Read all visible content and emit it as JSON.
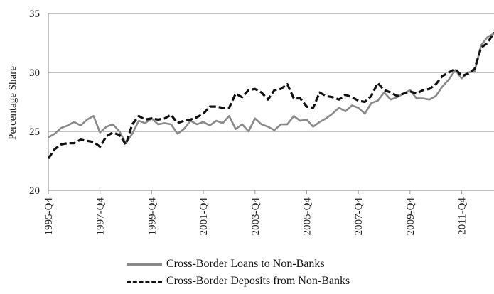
{
  "chart_data": {
    "type": "line",
    "ylabel": "Percentage Share",
    "xlabel": "",
    "ylim": [
      20,
      35
    ],
    "y_ticks": [
      "20",
      "25",
      "30",
      "35"
    ],
    "x_tick_labels": [
      "1995-Q4",
      "1997-Q4",
      "1999-Q4",
      "2001-Q4",
      "2003-Q4",
      "2005-Q4",
      "2007-Q4",
      "2009-Q4",
      "2011-Q4"
    ],
    "x_start": "1995-Q4",
    "x_end": "2012-Q4",
    "grid": "horizontal",
    "legend_placement": "bottom",
    "series": [
      {
        "name": "Cross-Border Loans to Non-Banks",
        "color": "#8a8a8a",
        "style": "solid",
        "values": [
          24.5,
          24.8,
          25.3,
          25.5,
          25.8,
          25.5,
          26.0,
          26.3,
          24.9,
          25.4,
          25.6,
          25.0,
          24.0,
          24.8,
          25.9,
          25.7,
          26.1,
          25.6,
          25.7,
          25.6,
          24.8,
          25.2,
          25.9,
          25.6,
          25.8,
          25.5,
          25.9,
          25.7,
          26.3,
          25.2,
          25.6,
          25.0,
          26.1,
          25.6,
          25.4,
          25.1,
          25.6,
          25.6,
          26.3,
          25.9,
          26.0,
          25.4,
          25.8,
          26.1,
          26.5,
          27.0,
          26.7,
          27.2,
          27.0,
          26.5,
          27.4,
          27.6,
          28.3,
          27.7,
          27.9,
          28.2,
          28.5,
          27.8,
          27.8,
          27.7,
          28.0,
          28.8,
          29.4,
          30.2,
          29.5,
          30.0,
          30.1,
          32.3,
          33.0,
          33.3
        ]
      },
      {
        "name": "Cross-Border Deposits from Non-Banks",
        "color": "#111111",
        "style": "dashed",
        "values": [
          22.7,
          23.5,
          23.9,
          24.0,
          24.0,
          24.3,
          24.2,
          24.1,
          23.7,
          24.6,
          24.9,
          24.7,
          23.9,
          25.6,
          26.3,
          26.0,
          26.1,
          26.0,
          26.1,
          26.4,
          25.7,
          25.9,
          26.0,
          26.2,
          26.5,
          27.1,
          27.1,
          27.0,
          27.0,
          28.2,
          27.9,
          28.5,
          28.6,
          28.3,
          27.7,
          28.5,
          28.6,
          29.0,
          27.8,
          27.8,
          27.1,
          27.0,
          28.3,
          28.0,
          27.9,
          27.7,
          28.1,
          27.9,
          27.6,
          27.5,
          28.0,
          29.1,
          28.5,
          28.3,
          28.0,
          28.2,
          28.4,
          28.2,
          28.5,
          28.6,
          29.0,
          29.7,
          30.0,
          30.3,
          29.7,
          29.9,
          30.3,
          32.1,
          32.5,
          33.4
        ]
      }
    ]
  }
}
